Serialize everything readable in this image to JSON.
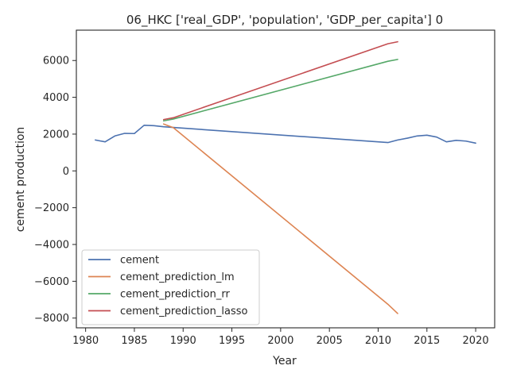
{
  "chart_data": {
    "type": "line",
    "title": "06_HKC ['real_GDP', 'population', 'GDP_per_capita'] 0",
    "xlabel": "Year",
    "ylabel": "cement production",
    "xlim": [
      1979.05,
      2021.95
    ],
    "ylim": [
      -8530,
      7650
    ],
    "xticks": [
      1980,
      1985,
      1990,
      1995,
      2000,
      2005,
      2010,
      2015,
      2020
    ],
    "yticks": [
      -8000,
      -6000,
      -4000,
      -2000,
      0,
      2000,
      4000,
      6000
    ],
    "grid": false,
    "legend_position": "lower-left",
    "series": [
      {
        "name": "cement",
        "color": "#4c72b0",
        "x": [
          1981,
          1982,
          1983,
          1984,
          1985,
          1986,
          1987,
          1988,
          1989,
          2011,
          2012,
          2013,
          2014,
          2015,
          2016,
          2017,
          2018,
          2019,
          2020
        ],
        "y": [
          1680,
          1580,
          1900,
          2040,
          2030,
          2480,
          2460,
          2400,
          2360,
          1540,
          1680,
          1780,
          1900,
          1940,
          1840,
          1580,
          1660,
          1620,
          1510
        ]
      },
      {
        "name": "cement_prediction_lm",
        "color": "#dd8452",
        "x": [
          1988,
          1989,
          2011,
          2012
        ],
        "y": [
          2550,
          2350,
          -7250,
          -7750
        ]
      },
      {
        "name": "cement_prediction_rr",
        "color": "#55a868",
        "x": [
          1988,
          1989,
          2011,
          2012
        ],
        "y": [
          2720,
          2820,
          5960,
          6060
        ]
      },
      {
        "name": "cement_prediction_lasso",
        "color": "#c44e52",
        "x": [
          1988,
          1989,
          2011,
          2012
        ],
        "y": [
          2790,
          2890,
          6910,
          7020
        ]
      }
    ]
  }
}
